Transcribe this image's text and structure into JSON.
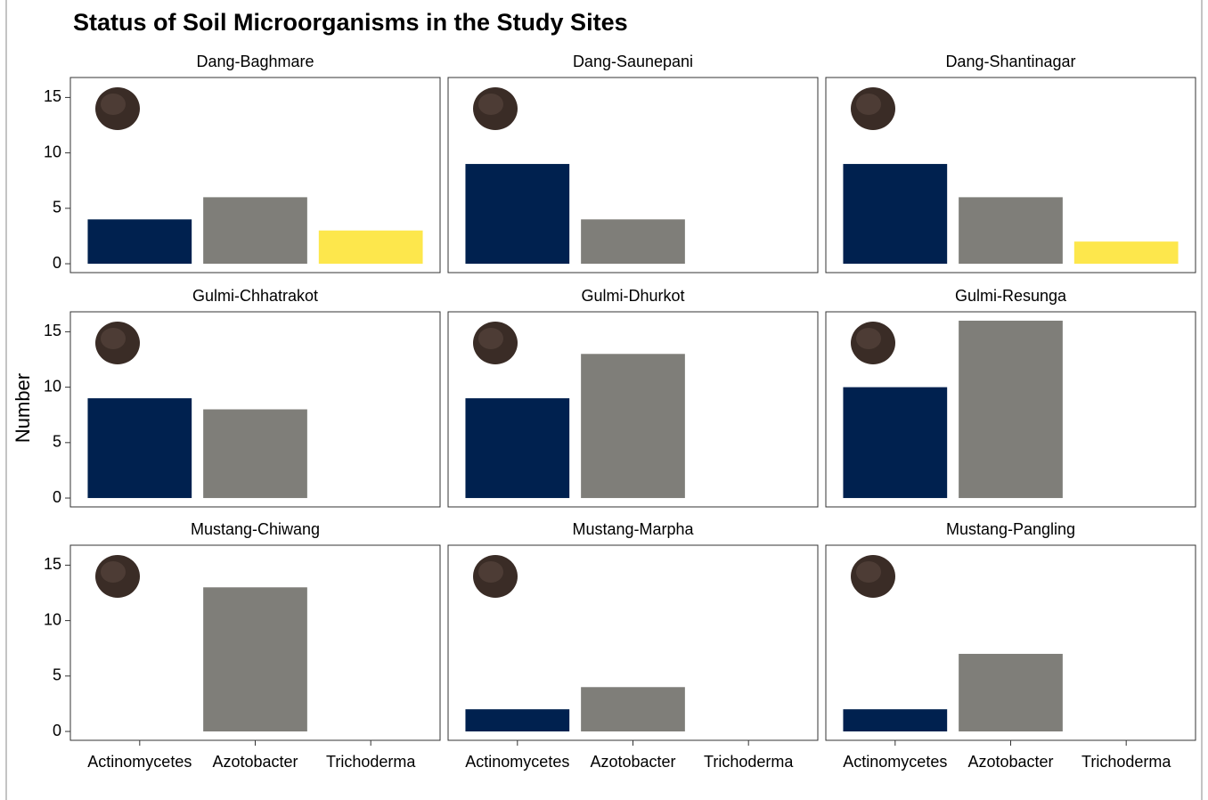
{
  "chart_data": {
    "type": "bar",
    "title": "Status of Soil Microorganisms in the Study Sites",
    "y_label": "Number",
    "categories": [
      "Actinomycetes",
      "Azotobacter",
      "Trichoderma"
    ],
    "colors": [
      "#00214f",
      "#7f7e79",
      "#fde74c"
    ],
    "ylim": [
      -0.8,
      16.8
    ],
    "yticks": [
      0,
      5,
      10,
      15
    ],
    "panels": [
      {
        "title": "Dang-Baghmare",
        "values": [
          4,
          6,
          3
        ]
      },
      {
        "title": "Dang-Saunepani",
        "values": [
          9,
          4,
          null
        ]
      },
      {
        "title": "Dang-Shantinagar",
        "values": [
          9,
          6,
          2
        ]
      },
      {
        "title": "Gulmi-Chhatrakot",
        "values": [
          9,
          8,
          null
        ]
      },
      {
        "title": "Gulmi-Dhurkot",
        "values": [
          9,
          13,
          null
        ]
      },
      {
        "title": "Gulmi-Resunga",
        "values": [
          10,
          16,
          null
        ]
      },
      {
        "title": "Mustang-Chiwang",
        "values": [
          null,
          13,
          null
        ]
      },
      {
        "title": "Mustang-Marpha",
        "values": [
          2,
          4,
          null
        ]
      },
      {
        "title": "Mustang-Pangling",
        "values": [
          2,
          7,
          null
        ]
      }
    ]
  }
}
